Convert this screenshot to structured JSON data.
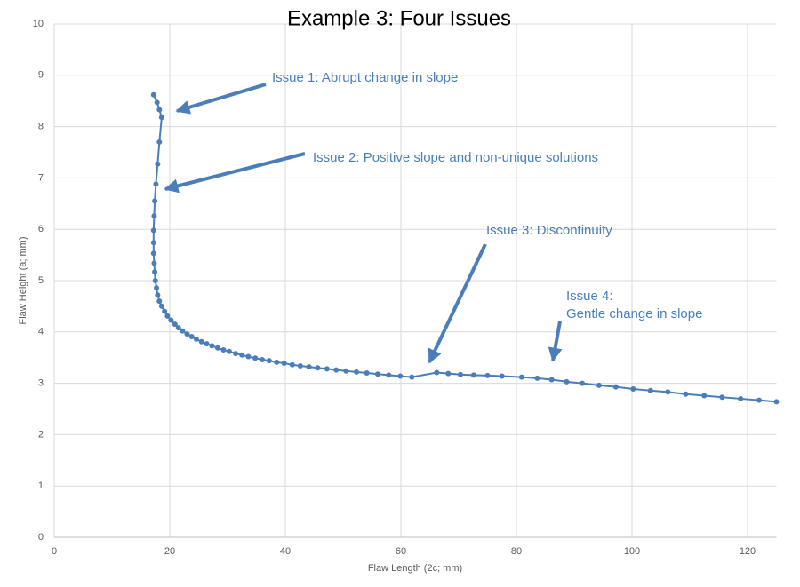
{
  "chart_data": {
    "type": "line",
    "title": "Example 3: Four Issues",
    "x_label": "Flaw Length (2c; mm)",
    "y_label": "Flaw Height (a; mm)",
    "xlim": [
      0,
      125
    ],
    "xticks": [
      0,
      20,
      40,
      60,
      80,
      100,
      120
    ],
    "ylim": [
      0,
      10
    ],
    "yticks": [
      0,
      1,
      2,
      3,
      4,
      5,
      6,
      7,
      8,
      9,
      10
    ],
    "grid": true,
    "annotations": [
      [
        "Issue 1: Abrupt change in slope"
      ],
      [
        "Issue 2: Positive slope and non-unique solutions"
      ],
      [
        "Issue 3: Discontinuity"
      ],
      [
        "Issue 4:",
        "Gentle change in slope"
      ]
    ],
    "x": [
      17.2,
      17.8,
      18.2,
      18.6,
      18.2,
      17.9,
      17.6,
      17.4,
      17.3,
      17.2,
      17.2,
      17.2,
      17.3,
      17.4,
      17.5,
      17.7,
      17.9,
      18.2,
      18.6,
      19.1,
      19.6,
      20.2,
      20.9,
      21.5,
      22.2,
      23,
      23.8,
      24.6,
      25.5,
      26.4,
      27.3,
      28.3,
      29.3,
      30.3,
      31.4,
      32.5,
      33.6,
      34.8,
      36,
      37.2,
      38.5,
      39.8,
      41.2,
      42.6,
      44.1,
      45.6,
      47.2,
      48.8,
      50.5,
      52.3,
      54.1,
      56,
      57.9,
      59.9,
      61.9,
      66.2,
      68.2,
      70.3,
      72.6,
      75,
      77.5,
      80.9,
      83.6,
      86.1,
      88.7,
      91.4,
      94.3,
      97.2,
      100.2,
      103.2,
      106.2,
      109.3,
      112.5,
      115.6,
      118.8,
      122,
      125
    ],
    "series": [
      {
        "color": "#4a7ebb",
        "values": [
          8.62,
          8.47,
          8.33,
          8.18,
          7.7,
          7.27,
          6.88,
          6.55,
          6.26,
          5.98,
          5.74,
          5.53,
          5.34,
          5.17,
          5.0,
          4.86,
          4.72,
          4.6,
          4.5,
          4.4,
          4.31,
          4.23,
          4.15,
          4.08,
          4.02,
          3.96,
          3.91,
          3.86,
          3.81,
          3.77,
          3.73,
          3.69,
          3.65,
          3.62,
          3.58,
          3.55,
          3.52,
          3.49,
          3.46,
          3.44,
          3.41,
          3.39,
          3.36,
          3.34,
          3.32,
          3.3,
          3.28,
          3.26,
          3.24,
          3.22,
          3.2,
          3.18,
          3.16,
          3.14,
          3.12,
          3.21,
          3.19,
          3.17,
          3.16,
          3.15,
          3.14,
          3.12,
          3.1,
          3.07,
          3.03,
          3.0,
          2.96,
          2.93,
          2.89,
          2.86,
          2.83,
          2.79,
          2.76,
          2.73,
          2.7,
          2.67,
          2.64
        ]
      }
    ]
  }
}
